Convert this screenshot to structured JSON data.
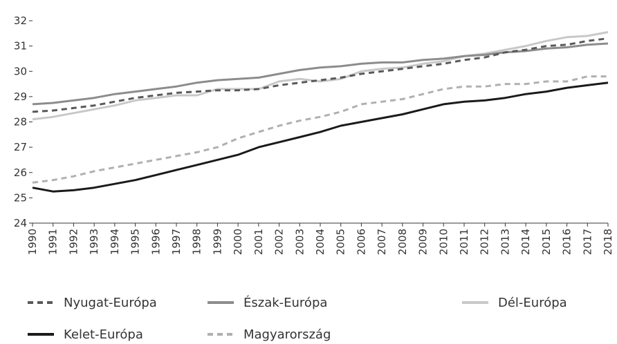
{
  "chart_data": {
    "type": "line",
    "x": [
      "1990",
      "1991",
      "1992",
      "1993",
      "1994",
      "1995",
      "1996",
      "1997",
      "1998",
      "1999",
      "2000",
      "2001",
      "2002",
      "2003",
      "2004",
      "2005",
      "2006",
      "2007",
      "2008",
      "2009",
      "2010",
      "2011",
      "2012",
      "2013",
      "2014",
      "2015",
      "2016",
      "2017",
      "2018"
    ],
    "ylim": [
      24,
      32
    ],
    "yticks": [
      "24",
      "25",
      "26",
      "27",
      "28",
      "29",
      "30",
      "31",
      "32"
    ],
    "grid": false,
    "legend_position": "bottom",
    "series": [
      {
        "name": "Nyugat-Európa",
        "color": "#595959",
        "style": "dashed",
        "values": [
          28.4,
          28.45,
          28.55,
          28.65,
          28.8,
          28.95,
          29.05,
          29.15,
          29.2,
          29.25,
          29.25,
          29.3,
          29.45,
          29.55,
          29.65,
          29.75,
          29.9,
          30.0,
          30.1,
          30.2,
          30.3,
          30.45,
          30.55,
          30.75,
          30.85,
          31.0,
          31.05,
          31.2,
          31.3
        ]
      },
      {
        "name": "Észak-Európa",
        "color": "#8c8c8c",
        "style": "solid",
        "values": [
          28.7,
          28.75,
          28.85,
          28.95,
          29.1,
          29.2,
          29.3,
          29.4,
          29.55,
          29.65,
          29.7,
          29.75,
          29.9,
          30.05,
          30.15,
          30.2,
          30.3,
          30.35,
          30.35,
          30.45,
          30.5,
          30.6,
          30.65,
          30.75,
          30.8,
          30.9,
          30.95,
          31.05,
          31.1
        ]
      },
      {
        "name": "Dél-Európa",
        "color": "#c8c8c8",
        "style": "solid",
        "values": [
          28.1,
          28.2,
          28.35,
          28.5,
          28.65,
          28.85,
          28.95,
          29.05,
          29.05,
          29.3,
          29.3,
          29.3,
          29.6,
          29.7,
          29.6,
          29.7,
          30.0,
          30.1,
          30.15,
          30.3,
          30.4,
          30.6,
          30.7,
          30.85,
          31.0,
          31.2,
          31.35,
          31.4,
          31.55
        ]
      },
      {
        "name": "Kelet-Európa",
        "color": "#1a1a1a",
        "style": "solid",
        "values": [
          25.4,
          25.25,
          25.3,
          25.4,
          25.55,
          25.7,
          25.9,
          26.1,
          26.3,
          26.5,
          26.7,
          27.0,
          27.2,
          27.4,
          27.6,
          27.85,
          28.0,
          28.15,
          28.3,
          28.5,
          28.7,
          28.8,
          28.85,
          28.95,
          29.1,
          29.2,
          29.35,
          29.45,
          29.55
        ]
      },
      {
        "name": "Magyarország",
        "color": "#b0b0b0",
        "style": "dashed",
        "values": [
          25.6,
          25.7,
          25.85,
          26.05,
          26.2,
          26.35,
          26.5,
          26.65,
          26.8,
          27.0,
          27.35,
          27.6,
          27.85,
          28.05,
          28.2,
          28.4,
          28.7,
          28.8,
          28.9,
          29.1,
          29.3,
          29.4,
          29.4,
          29.5,
          29.5,
          29.6,
          29.6,
          29.8,
          29.8
        ]
      }
    ]
  }
}
